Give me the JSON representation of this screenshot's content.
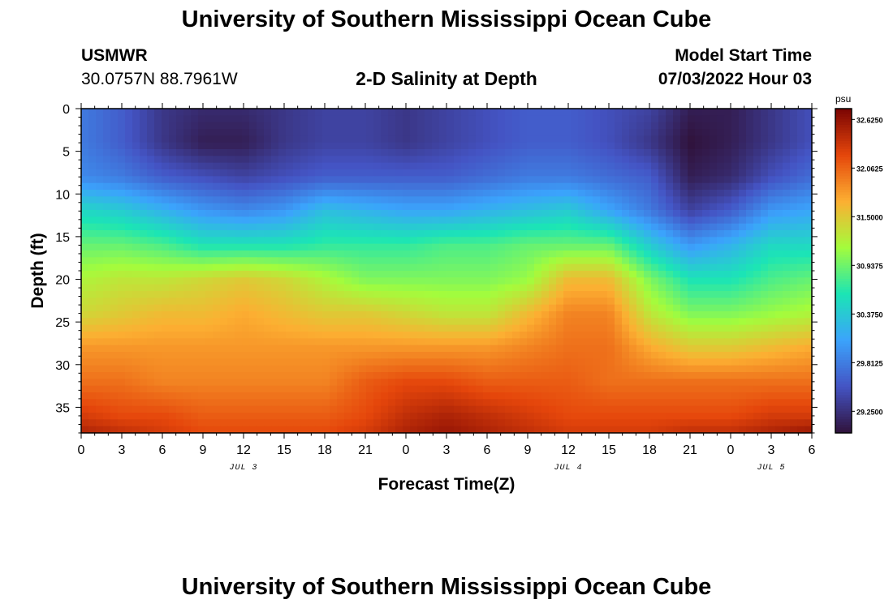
{
  "header": {
    "title": "University of Southern Mississippi Ocean Cube",
    "station_name": "USMWR",
    "station_coords": "30.0757N  88.7961W",
    "subtitle": "2-D Salinity at Depth",
    "model_start_label": "Model Start Time",
    "model_start_value": "07/03/2022 Hour 03"
  },
  "footer": {
    "title": "University of Southern Mississippi Ocean Cube"
  },
  "colors": {
    "colormap": [
      "#30123b",
      "#4454c4",
      "#3ba3fc",
      "#1be5b5",
      "#a4fc3c",
      "#fcaf32",
      "#e5460b",
      "#7a0403"
    ]
  },
  "chart_data": {
    "type": "heatmap",
    "title": "2-D Salinity at Depth",
    "xlabel": "Forecast Time(Z)",
    "ylabel": "Depth (ft)",
    "x_ticks": [
      "0",
      "3",
      "6",
      "9",
      "12",
      "15",
      "18",
      "21",
      "0",
      "3",
      "6",
      "9",
      "12",
      "15",
      "18",
      "21",
      "0",
      "3",
      "6"
    ],
    "x_tick_hours": [
      0,
      3,
      6,
      9,
      12,
      15,
      18,
      21,
      24,
      27,
      30,
      33,
      36,
      39,
      42,
      45,
      48,
      51,
      54
    ],
    "xlim_hours": [
      0,
      54
    ],
    "date_labels": [
      {
        "text": "JUL 3",
        "at_hour": 12
      },
      {
        "text": "JUL 4",
        "at_hour": 36
      },
      {
        "text": "JUL 5",
        "at_hour": 51
      }
    ],
    "y_ticks": [
      0,
      5,
      10,
      15,
      20,
      25,
      30,
      35
    ],
    "ylim": [
      0,
      38
    ],
    "y_reversed": true,
    "colorbar": {
      "unit": "psu",
      "min": 29.0,
      "max": 32.75,
      "ticks": [
        "32.6250",
        "32.0625",
        "31.5000",
        "30.9375",
        "30.3750",
        "29.8125",
        "29.2500"
      ],
      "tick_values": [
        32.625,
        32.0625,
        31.5,
        30.9375,
        30.375,
        29.8125,
        29.25
      ]
    },
    "depths_ft": [
      0,
      4,
      8,
      12,
      16,
      20,
      24,
      28,
      32,
      36,
      38
    ],
    "times_hours": [
      0,
      3,
      6,
      9,
      12,
      15,
      18,
      21,
      24,
      27,
      30,
      33,
      36,
      39,
      42,
      45,
      48,
      51,
      54
    ],
    "salinity_psu": [
      [
        29.8,
        29.6,
        29.3,
        29.2,
        29.2,
        29.3,
        29.4,
        29.4,
        29.3,
        29.4,
        29.5,
        29.6,
        29.6,
        29.5,
        29.4,
        29.1,
        29.1,
        29.3,
        29.5
      ],
      [
        29.8,
        29.6,
        29.3,
        29.1,
        29.1,
        29.3,
        29.4,
        29.4,
        29.3,
        29.4,
        29.5,
        29.6,
        29.6,
        29.5,
        29.3,
        29.0,
        29.1,
        29.3,
        29.5
      ],
      [
        29.9,
        29.8,
        29.6,
        29.5,
        29.4,
        29.5,
        29.6,
        29.6,
        29.6,
        29.6,
        29.7,
        29.8,
        29.8,
        29.7,
        29.6,
        29.1,
        29.2,
        29.5,
        29.7
      ],
      [
        30.5,
        30.4,
        30.2,
        30.0,
        29.9,
        30.0,
        30.3,
        30.2,
        30.1,
        30.1,
        30.2,
        30.3,
        30.4,
        30.1,
        29.8,
        29.4,
        29.6,
        30.0,
        30.1
      ],
      [
        30.9,
        30.9,
        30.8,
        30.6,
        30.6,
        30.6,
        30.7,
        30.7,
        30.7,
        30.8,
        30.8,
        30.9,
        30.9,
        30.9,
        30.4,
        30.0,
        30.2,
        30.5,
        30.5
      ],
      [
        31.2,
        31.3,
        31.3,
        31.4,
        31.5,
        31.4,
        31.2,
        31.0,
        31.0,
        31.0,
        31.0,
        31.1,
        31.6,
        31.6,
        31.0,
        30.6,
        30.6,
        30.8,
        30.9
      ],
      [
        31.4,
        31.5,
        31.6,
        31.6,
        31.7,
        31.6,
        31.5,
        31.5,
        31.4,
        31.3,
        31.3,
        31.6,
        31.9,
        31.9,
        31.3,
        31.0,
        31.0,
        31.1,
        31.2
      ],
      [
        31.8,
        31.8,
        31.8,
        31.8,
        31.8,
        31.8,
        31.8,
        31.8,
        31.8,
        31.8,
        31.8,
        31.9,
        32.0,
        32.0,
        31.7,
        31.5,
        31.5,
        31.6,
        31.7
      ],
      [
        32.0,
        32.0,
        31.9,
        31.9,
        31.9,
        31.9,
        31.9,
        32.1,
        32.2,
        32.2,
        32.1,
        32.1,
        32.1,
        32.0,
        32.0,
        32.0,
        32.0,
        32.0,
        32.0
      ],
      [
        32.3,
        32.2,
        32.2,
        32.1,
        32.1,
        32.1,
        32.1,
        32.2,
        32.4,
        32.5,
        32.4,
        32.3,
        32.2,
        32.2,
        32.2,
        32.2,
        32.2,
        32.3,
        32.3
      ],
      [
        32.5,
        32.4,
        32.3,
        32.2,
        32.2,
        32.2,
        32.2,
        32.3,
        32.5,
        32.6,
        32.5,
        32.4,
        32.3,
        32.3,
        32.3,
        32.4,
        32.4,
        32.5,
        32.6
      ]
    ]
  }
}
